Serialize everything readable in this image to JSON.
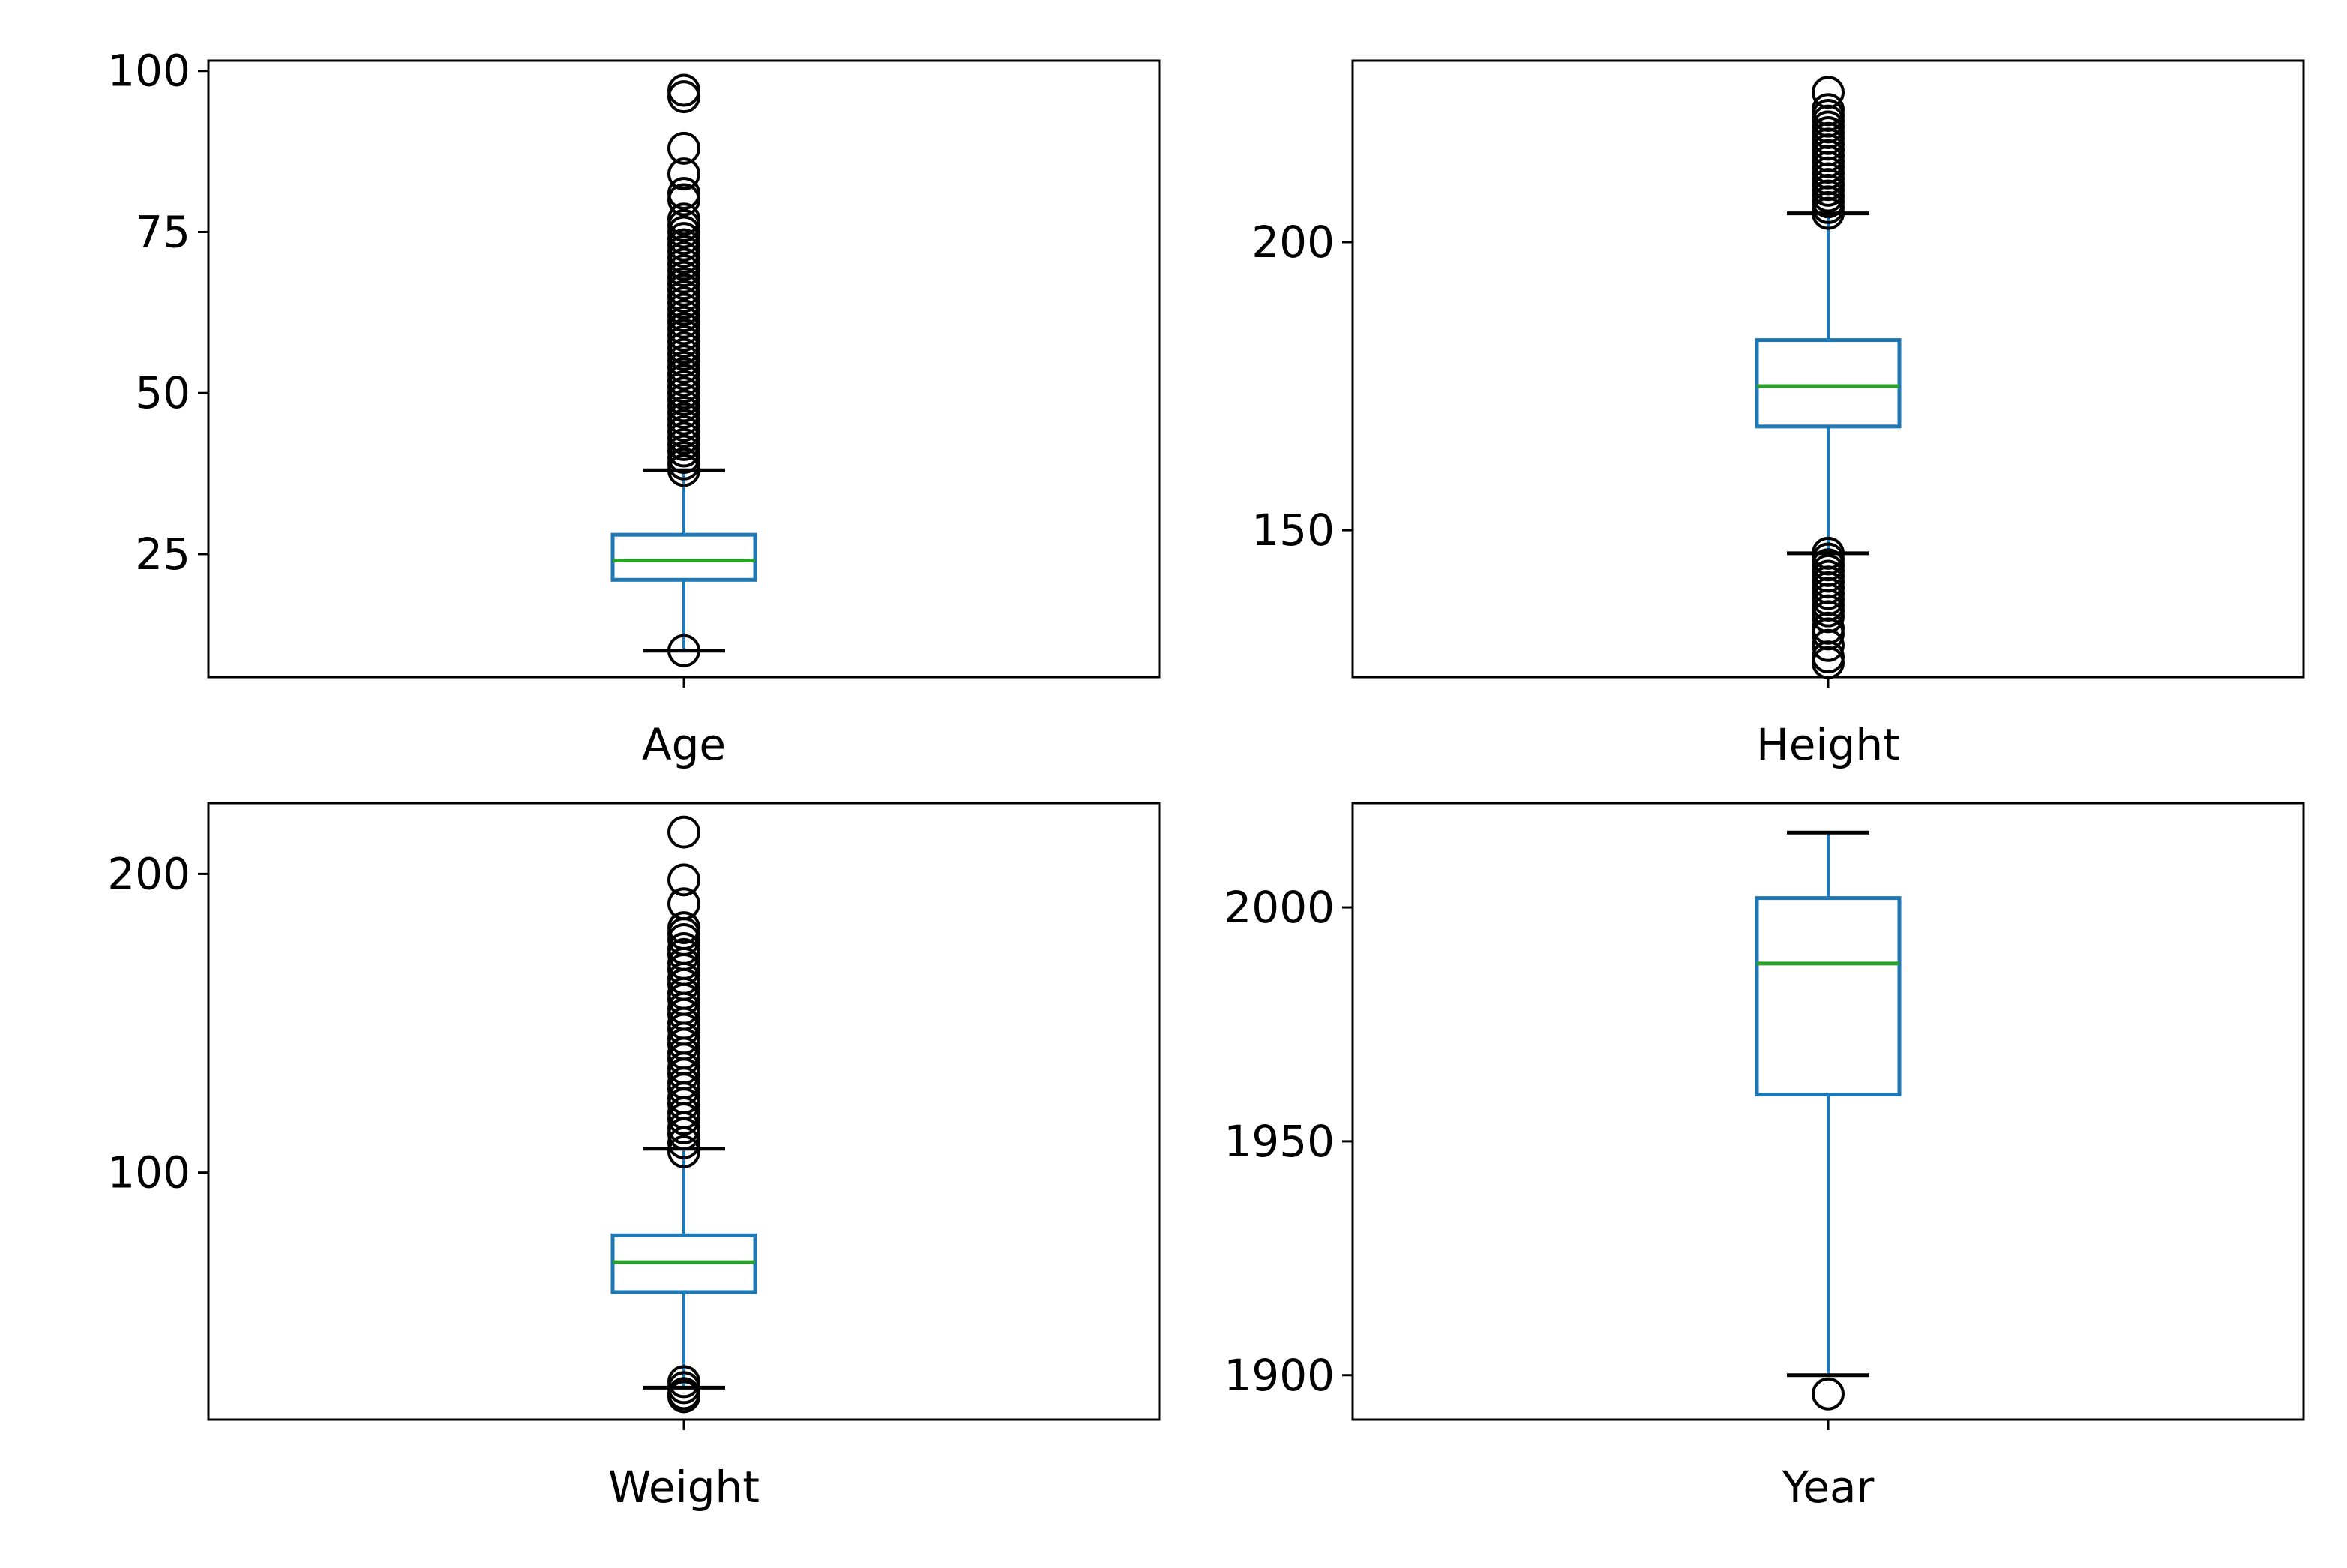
{
  "colors": {
    "box": "#1f77b4",
    "median": "#2ca02c",
    "whisker": "#1f77b4",
    "cap": "#000000",
    "flier": "#000000",
    "axes": "#000000",
    "background": "#ffffff"
  },
  "chart_data": [
    {
      "type": "box",
      "xlabel": "Age",
      "ylim": [
        5.9,
        101.6
      ],
      "yticks": [
        25,
        50,
        75,
        100
      ],
      "yticklabels": [
        "25",
        "50",
        "75",
        "100"
      ],
      "q1": 21,
      "median": 24,
      "q3": 28,
      "whisker_low": 10,
      "whisker_high": 38,
      "fliers": [
        10,
        38,
        39,
        40,
        41,
        42,
        43,
        44,
        45,
        46,
        47,
        48,
        49,
        50,
        51,
        52,
        53,
        54,
        55,
        56,
        57,
        58,
        59,
        60,
        61,
        62,
        63,
        64,
        65,
        66,
        67,
        68,
        69,
        70,
        71,
        72,
        73,
        74,
        75,
        76,
        77,
        80,
        81,
        84,
        88,
        96,
        97
      ]
    },
    {
      "type": "box",
      "xlabel": "Height",
      "ylim": [
        124.5,
        231.5
      ],
      "yticks": [
        150,
        200
      ],
      "yticklabels": [
        "150",
        "200"
      ],
      "q1": 168,
      "median": 175,
      "q3": 183,
      "whisker_low": 146,
      "whisker_high": 205,
      "fliers": [
        127,
        128,
        130,
        132,
        133,
        135,
        136,
        137,
        138,
        139,
        140,
        141,
        142,
        143,
        144,
        145,
        146,
        205,
        206,
        207,
        208,
        209,
        210,
        211,
        212,
        213,
        214,
        215,
        216,
        217,
        218,
        219,
        220,
        221,
        222,
        223,
        226
      ]
    },
    {
      "type": "box",
      "xlabel": "Weight",
      "ylim": [
        17.3,
        223.7
      ],
      "yticks": [
        100,
        200
      ],
      "yticklabels": [
        "100",
        "200"
      ],
      "q1": 60,
      "median": 70,
      "q3": 79,
      "whisker_low": 28,
      "whisker_high": 108,
      "fliers": [
        25,
        26,
        28,
        30,
        107,
        110,
        113,
        115,
        118,
        120,
        123,
        125,
        128,
        130,
        133,
        135,
        138,
        140,
        143,
        145,
        148,
        150,
        153,
        155,
        158,
        160,
        163,
        165,
        168,
        170,
        173,
        175,
        178,
        180,
        182,
        190,
        198,
        214
      ]
    },
    {
      "type": "box",
      "xlabel": "Year",
      "ylim": [
        1890.5,
        2022.3
      ],
      "yticks": [
        1900,
        1950,
        2000
      ],
      "yticklabels": [
        "1900",
        "1950",
        "2000"
      ],
      "q1": 1960,
      "median": 1988,
      "q3": 2002,
      "whisker_low": 1900,
      "whisker_high": 2016,
      "fliers": [
        1896
      ]
    }
  ]
}
